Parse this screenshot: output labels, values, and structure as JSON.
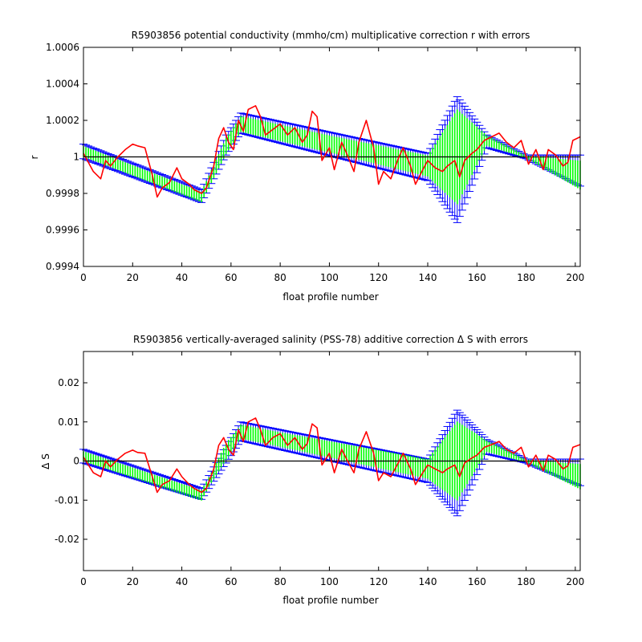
{
  "colors": {
    "band": "#00ff00",
    "errbar": "#0000ff",
    "raw": "#ff0000",
    "zero": "#000000"
  },
  "chart_data": [
    {
      "type": "line",
      "title": "R5903856 potential conductivity (mmho/cm) multiplicative correction r with errors",
      "xlabel": "float profile number",
      "ylabel": "r",
      "xlim": [
        0,
        202
      ],
      "ylim": [
        0.9994,
        1.0006
      ],
      "xticks": [
        0,
        20,
        40,
        60,
        80,
        100,
        120,
        140,
        160,
        180,
        200
      ],
      "yticks": [
        "0.9994",
        "0.9996",
        "0.9998",
        "1",
        "1.0002",
        "1.0004",
        "1.0006"
      ],
      "ytick_values": [
        0.9994,
        0.9996,
        0.9998,
        1.0,
        1.0002,
        1.0004,
        1.0006
      ],
      "reference_line": 1.0,
      "series": [
        {
          "kind": "fit_with_errors",
          "x": [
            0,
            48,
            58,
            64,
            140,
            152,
            164,
            180,
            202
          ],
          "upper": [
            1.00007,
            0.99982,
            1.00012,
            1.00024,
            1.00002,
            1.00033,
            1.00012,
            1.00001,
            1.00001
          ],
          "center": [
            1.00003,
            0.99978,
            1.00006,
            1.00018,
            0.99995,
            1.0,
            1.00009,
            1.0,
            0.9999
          ],
          "lower": [
            0.99999,
            0.99975,
            1.00001,
            1.00013,
            0.99987,
            0.99964,
            1.00005,
            0.99999,
            0.99984
          ]
        },
        {
          "kind": "raw",
          "x": [
            0,
            4,
            7,
            9,
            11,
            14,
            17,
            20,
            22,
            25,
            28,
            30,
            32,
            35,
            38,
            40,
            43,
            45,
            48,
            50,
            53,
            55,
            57,
            59,
            61,
            63,
            65,
            67,
            70,
            72,
            74,
            77,
            80,
            83,
            86,
            89,
            91,
            93,
            95,
            97,
            100,
            102,
            105,
            107,
            110,
            112,
            115,
            118,
            120,
            122,
            125,
            128,
            130,
            133,
            135,
            138,
            140,
            143,
            146,
            148,
            151,
            153,
            155,
            158,
            160,
            163,
            166,
            169,
            172,
            175,
            178,
            181,
            184,
            187,
            189,
            192,
            195,
            197,
            199,
            202
          ],
          "y": [
            1.00002,
            0.99992,
            0.99988,
            0.99998,
            0.99995,
            1.0,
            1.00004,
            1.00007,
            1.00006,
            1.00005,
            0.9999,
            0.99978,
            0.99983,
            0.99986,
            0.99994,
            0.99988,
            0.99985,
            0.99982,
            0.9998,
            0.99983,
            0.99995,
            1.0001,
            1.00016,
            1.00008,
            1.00004,
            1.0002,
            1.00014,
            1.00026,
            1.00028,
            1.00022,
            1.00012,
            1.00015,
            1.00018,
            1.00012,
            1.00016,
            1.00008,
            1.00012,
            1.00025,
            1.00022,
            0.99998,
            1.00005,
            0.99993,
            1.00008,
            1.00002,
            0.99992,
            1.00008,
            1.0002,
            1.00005,
            0.99985,
            0.99992,
            0.99988,
            0.99999,
            1.00005,
            0.99995,
            0.99985,
            0.99993,
            0.99998,
            0.99994,
            0.99992,
            0.99995,
            0.99998,
            0.99989,
            0.99998,
            1.00002,
            1.00004,
            1.00009,
            1.00011,
            1.00013,
            1.00008,
            1.00005,
            1.00009,
            0.99996,
            1.00004,
            0.99993,
            1.00004,
            1.00001,
            0.99995,
            0.99997,
            1.00009,
            1.00011
          ]
        }
      ]
    },
    {
      "type": "line",
      "title": "R5903856 vertically-averaged salinity (PSS-78) additive correction Δ S with errors",
      "xlabel": "float profile number",
      "ylabel": "Δ S",
      "xlim": [
        0,
        202
      ],
      "ylim": [
        -0.028,
        0.028
      ],
      "xticks": [
        0,
        20,
        40,
        60,
        80,
        100,
        120,
        140,
        160,
        180,
        200
      ],
      "yticks": [
        "-0.02",
        "-0.01",
        "0",
        "0.01",
        "0.02"
      ],
      "ytick_values": [
        -0.02,
        -0.01,
        0,
        0.01,
        0.02
      ],
      "reference_line": 0,
      "series": [
        {
          "kind": "fit_with_errors",
          "x": [
            0,
            48,
            58,
            64,
            140,
            152,
            164,
            180,
            202
          ],
          "upper": [
            0.003,
            -0.007,
            0.004,
            0.01,
            0.0005,
            0.013,
            0.0055,
            0.0005,
            0.0005
          ],
          "center": [
            0.0012,
            -0.0088,
            0.0025,
            0.0075,
            -0.002,
            0.0,
            0.0038,
            0.0,
            -0.004
          ],
          "lower": [
            -0.0005,
            -0.0098,
            -0.0005,
            0.0052,
            -0.0055,
            -0.014,
            0.0018,
            -0.0005,
            -0.0063
          ]
        },
        {
          "kind": "raw",
          "x": [
            0,
            4,
            7,
            9,
            11,
            14,
            17,
            20,
            22,
            25,
            28,
            30,
            32,
            35,
            38,
            40,
            43,
            45,
            48,
            50,
            53,
            55,
            57,
            59,
            61,
            63,
            65,
            67,
            70,
            72,
            74,
            77,
            80,
            83,
            86,
            89,
            91,
            93,
            95,
            97,
            100,
            102,
            105,
            107,
            110,
            112,
            115,
            118,
            120,
            122,
            125,
            128,
            130,
            133,
            135,
            138,
            140,
            143,
            146,
            148,
            151,
            153,
            155,
            158,
            160,
            163,
            166,
            169,
            172,
            175,
            178,
            181,
            184,
            187,
            189,
            192,
            195,
            197,
            199,
            202
          ],
          "y": [
            0.001,
            -0.003,
            -0.004,
            0.0,
            -0.0015,
            0.0005,
            0.002,
            0.0028,
            0.0022,
            0.002,
            -0.004,
            -0.008,
            -0.006,
            -0.005,
            -0.002,
            -0.004,
            -0.006,
            -0.007,
            -0.008,
            -0.007,
            -0.002,
            0.004,
            0.006,
            0.003,
            0.0015,
            0.008,
            0.005,
            0.01,
            0.011,
            0.008,
            0.004,
            0.006,
            0.007,
            0.004,
            0.006,
            0.003,
            0.0045,
            0.0095,
            0.0085,
            -0.001,
            0.002,
            -0.003,
            0.003,
            0.0005,
            -0.003,
            0.003,
            0.0075,
            0.002,
            -0.005,
            -0.003,
            -0.004,
            -0.0005,
            0.002,
            -0.002,
            -0.006,
            -0.003,
            -0.001,
            -0.002,
            -0.003,
            -0.002,
            -0.001,
            -0.004,
            -0.0005,
            0.0008,
            0.0015,
            0.0035,
            0.0042,
            0.005,
            0.003,
            0.002,
            0.0035,
            -0.0015,
            0.0015,
            -0.0025,
            0.0015,
            0.0004,
            -0.002,
            -0.0012,
            0.0035,
            0.0042
          ]
        }
      ]
    }
  ]
}
